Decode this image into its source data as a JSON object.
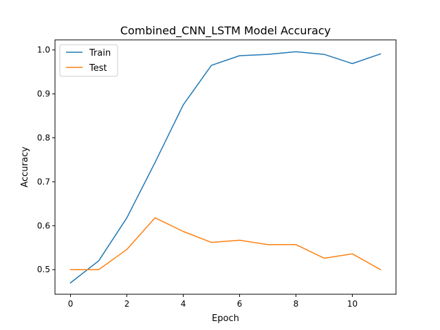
{
  "chart_data": {
    "type": "line",
    "title": "Combined_CNN_LSTM Model Accuracy",
    "xlabel": "Epoch",
    "ylabel": "Accuracy",
    "x": [
      0,
      1,
      2,
      3,
      4,
      5,
      6,
      7,
      8,
      9,
      10,
      11
    ],
    "xlim": [
      -0.55,
      11.55
    ],
    "ylim": [
      0.444,
      1.023
    ],
    "xticks": [
      0,
      2,
      4,
      6,
      8,
      10
    ],
    "xtick_labels": [
      "0",
      "2",
      "4",
      "6",
      "8",
      "10"
    ],
    "yticks": [
      0.5,
      0.6,
      0.7,
      0.8,
      0.9,
      1.0
    ],
    "ytick_labels": [
      "0.5",
      "0.6",
      "0.7",
      "0.8",
      "0.9",
      "1.0"
    ],
    "grid": false,
    "legend_position": "top-left",
    "series": [
      {
        "name": "Train",
        "color": "#1f77b4",
        "values": [
          0.47,
          0.52,
          0.618,
          0.744,
          0.875,
          0.965,
          0.987,
          0.99,
          0.996,
          0.99,
          0.969,
          0.991
        ]
      },
      {
        "name": "Test",
        "color": "#ff7f0e",
        "values": [
          0.5,
          0.5,
          0.546,
          0.618,
          0.587,
          0.562,
          0.567,
          0.557,
          0.557,
          0.526,
          0.536,
          0.5
        ]
      }
    ]
  }
}
